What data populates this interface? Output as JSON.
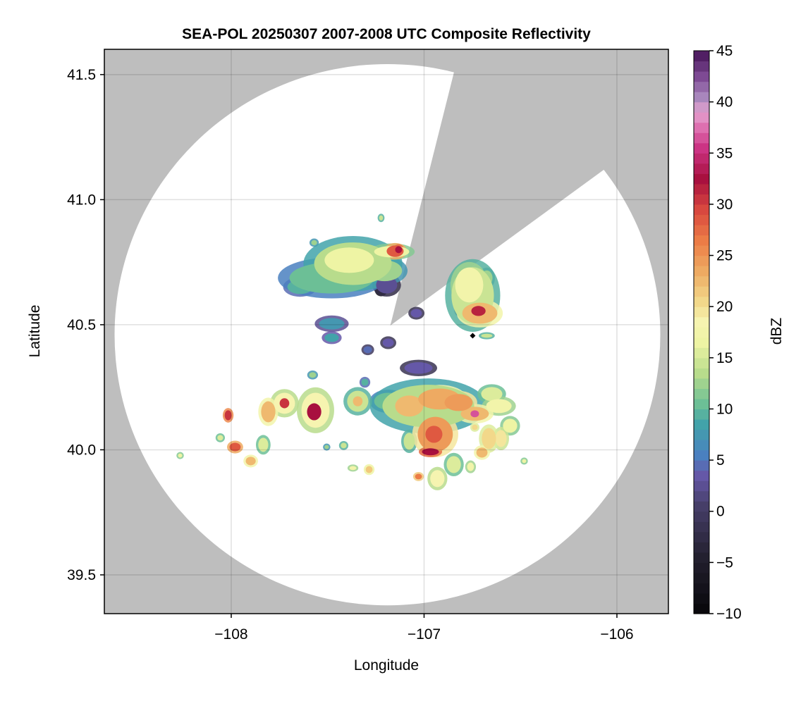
{
  "chart_data": {
    "type": "heatmap",
    "title": "SEA-POL 20250307 2007-2008 UTC Composite Reflectivity",
    "xlabel": "Longitude",
    "ylabel": "Latitude",
    "xlim": [
      -108.658,
      -105.733
    ],
    "ylim": [
      39.345,
      41.601
    ],
    "xticks": [
      -108,
      -107,
      -106
    ],
    "xtick_labels": [
      "−108",
      "−107",
      "−106"
    ],
    "yticks": [
      39.5,
      40.0,
      40.5,
      41.0,
      41.5
    ],
    "ytick_labels": [
      "39.5",
      "40.0",
      "40.5",
      "41.0",
      "41.5"
    ],
    "grid": true,
    "background_color": "#bebebe",
    "grid_color": "#d6d6d6",
    "colorbar": {
      "label": "dBZ",
      "range": [
        -10,
        45
      ],
      "step": 1,
      "ticks": [
        -10,
        -5,
        0,
        5,
        10,
        15,
        20,
        25,
        30,
        35,
        40,
        45
      ],
      "tick_labels": [
        "−10",
        "−5",
        "0",
        "5",
        "10",
        "15",
        "20",
        "25",
        "30",
        "35",
        "40",
        "45"
      ],
      "colormap_stops": [
        [
          -10,
          "#0a090d"
        ],
        [
          -5,
          "#23202f"
        ],
        [
          0,
          "#463e68"
        ],
        [
          3,
          "#6558a8"
        ],
        [
          5,
          "#4a80c0"
        ],
        [
          8,
          "#42a3aa"
        ],
        [
          10,
          "#6cbf96"
        ],
        [
          13,
          "#b8dc8c"
        ],
        [
          16,
          "#eef4a4"
        ],
        [
          18,
          "#f6f4b0"
        ],
        [
          20,
          "#f2d88a"
        ],
        [
          23,
          "#eeaa62"
        ],
        [
          26,
          "#ec7c46"
        ],
        [
          29,
          "#d8483f"
        ],
        [
          32,
          "#a8103f"
        ],
        [
          35,
          "#cc3484"
        ],
        [
          37,
          "#de70b0"
        ],
        [
          38.5,
          "#e4a2d0"
        ],
        [
          40,
          "#a886bc"
        ],
        [
          42,
          "#7e4a94"
        ],
        [
          45,
          "#3a0a4c"
        ]
      ]
    },
    "radar_coverage": {
      "center": [
        -107.19,
        40.46
      ],
      "radius_deg": [
        1.415,
        1.082
      ],
      "blocked_sector": {
        "apex": [
          -107.175,
          40.497
        ],
        "edge_points": [
          [
            -106.839,
            41.527
          ],
          [
            -106.06,
            41.124
          ]
        ]
      }
    },
    "marker": {
      "lon": -106.748,
      "lat": 40.456,
      "shape": "diamond"
    },
    "echo_cells": [
      {
        "lon": -107.479,
        "lat": 40.687,
        "rlon": 0.219,
        "rlat": 0.062,
        "dbz": 10
      },
      {
        "lon": -107.369,
        "lat": 40.744,
        "rlon": 0.201,
        "rlat": 0.085,
        "dbz": 13
      },
      {
        "lon": -107.388,
        "lat": 40.758,
        "rlon": 0.128,
        "rlat": 0.051,
        "dbz": 16
      },
      {
        "lon": -107.643,
        "lat": 40.651,
        "rlon": 0.066,
        "rlat": 0.028,
        "dbz": 9
      },
      {
        "lon": -107.205,
        "lat": 40.716,
        "rlon": 0.091,
        "rlat": 0.042,
        "dbz": 12
      },
      {
        "lon": -107.194,
        "lat": 40.659,
        "rlon": 0.055,
        "rlat": 0.034,
        "dbz": 2
      },
      {
        "lon": -107.223,
        "lat": 40.639,
        "rlon": 0.022,
        "rlat": 0.017,
        "dbz": -3
      },
      {
        "lon": -107.168,
        "lat": 40.792,
        "rlon": 0.091,
        "rlat": 0.023,
        "dbz": 16
      },
      {
        "lon": -107.15,
        "lat": 40.794,
        "rlon": 0.044,
        "rlat": 0.023,
        "dbz": 28
      },
      {
        "lon": -107.132,
        "lat": 40.8,
        "rlon": 0.018,
        "rlat": 0.014,
        "dbz": 32
      },
      {
        "lon": -107.479,
        "lat": 40.504,
        "rlon": 0.066,
        "rlat": 0.023,
        "dbz": 7
      },
      {
        "lon": -107.479,
        "lat": 40.448,
        "rlon": 0.037,
        "rlat": 0.017,
        "dbz": 8
      },
      {
        "lon": -107.186,
        "lat": 40.428,
        "rlon": 0.029,
        "rlat": 0.017,
        "dbz": 3
      },
      {
        "lon": -107.04,
        "lat": 40.546,
        "rlon": 0.029,
        "rlat": 0.017,
        "dbz": 3
      },
      {
        "lon": -107.292,
        "lat": 40.4,
        "rlon": 0.022,
        "rlat": 0.014,
        "dbz": 4
      },
      {
        "lon": -107.57,
        "lat": 40.828,
        "rlon": 0.015,
        "rlat": 0.01,
        "dbz": 12
      },
      {
        "lon": -107.223,
        "lat": 40.927,
        "rlon": 0.01,
        "rlat": 0.01,
        "dbz": 14
      },
      {
        "lon": -106.748,
        "lat": 40.617,
        "rlon": 0.11,
        "rlat": 0.113,
        "dbz": 14
      },
      {
        "lon": -106.766,
        "lat": 40.659,
        "rlon": 0.073,
        "rlat": 0.07,
        "dbz": 17
      },
      {
        "lon": -106.711,
        "lat": 40.546,
        "rlon": 0.091,
        "rlat": 0.042,
        "dbz": 22
      },
      {
        "lon": -106.718,
        "lat": 40.555,
        "rlon": 0.037,
        "rlat": 0.02,
        "dbz": 31
      },
      {
        "lon": -106.784,
        "lat": 40.561,
        "rlon": 0.044,
        "rlat": 0.028,
        "dbz": 7
      },
      {
        "lon": -106.675,
        "lat": 40.456,
        "rlon": 0.029,
        "rlat": 0.008,
        "dbz": 14
      },
      {
        "lon": -106.675,
        "lat": 40.687,
        "rlon": 0.03,
        "rlat": 0.03,
        "dbz": 12
      },
      {
        "lon": -106.978,
        "lat": 40.175,
        "rlon": 0.238,
        "rlat": 0.085,
        "dbz": 13
      },
      {
        "lon": -107.077,
        "lat": 40.175,
        "rlon": 0.073,
        "rlat": 0.042,
        "dbz": 22
      },
      {
        "lon": -106.92,
        "lat": 40.203,
        "rlon": 0.11,
        "rlat": 0.042,
        "dbz": 23
      },
      {
        "lon": -106.942,
        "lat": 40.062,
        "rlon": 0.091,
        "rlat": 0.07,
        "dbz": 24
      },
      {
        "lon": -106.949,
        "lat": 40.062,
        "rlon": 0.044,
        "rlat": 0.034,
        "dbz": 28
      },
      {
        "lon": -106.967,
        "lat": 39.992,
        "rlon": 0.044,
        "rlat": 0.014,
        "dbz": 32
      },
      {
        "lon": -106.737,
        "lat": 40.144,
        "rlon": 0.073,
        "rlat": 0.028,
        "dbz": 22
      },
      {
        "lon": -106.737,
        "lat": 40.144,
        "rlon": 0.022,
        "rlat": 0.014,
        "dbz": 36
      },
      {
        "lon": -106.821,
        "lat": 40.189,
        "rlon": 0.073,
        "rlat": 0.034,
        "dbz": 24
      },
      {
        "lon": -107.066,
        "lat": 40.158,
        "rlon": 0.044,
        "rlat": 0.028,
        "dbz": 11
      },
      {
        "lon": -107.029,
        "lat": 40.327,
        "rlon": 0.073,
        "rlat": 0.023,
        "dbz": 3
      },
      {
        "lon": -106.612,
        "lat": 40.175,
        "rlon": 0.066,
        "rlat": 0.028,
        "dbz": 17
      },
      {
        "lon": -106.649,
        "lat": 40.223,
        "rlon": 0.055,
        "rlat": 0.028,
        "dbz": 15
      },
      {
        "lon": -107.186,
        "lat": 40.194,
        "rlon": 0.073,
        "rlat": 0.034,
        "dbz": 10
      },
      {
        "lon": -107.344,
        "lat": 40.194,
        "rlon": 0.055,
        "rlat": 0.042,
        "dbz": 14
      },
      {
        "lon": -107.344,
        "lat": 40.194,
        "rlon": 0.025,
        "rlat": 0.02,
        "dbz": 22
      },
      {
        "lon": -107.563,
        "lat": 40.158,
        "rlon": 0.073,
        "rlat": 0.07,
        "dbz": 18
      },
      {
        "lon": -107.57,
        "lat": 40.152,
        "rlon": 0.037,
        "rlat": 0.034,
        "dbz": 32
      },
      {
        "lon": -107.724,
        "lat": 40.186,
        "rlon": 0.055,
        "rlat": 0.042,
        "dbz": 18
      },
      {
        "lon": -107.724,
        "lat": 40.186,
        "rlon": 0.025,
        "rlat": 0.02,
        "dbz": 30
      },
      {
        "lon": -107.808,
        "lat": 40.152,
        "rlon": 0.037,
        "rlat": 0.042,
        "dbz": 22
      },
      {
        "lon": -108.016,
        "lat": 40.138,
        "rlon": 0.018,
        "rlat": 0.02,
        "dbz": 30
      },
      {
        "lon": -107.98,
        "lat": 40.011,
        "rlon": 0.029,
        "rlat": 0.017,
        "dbz": 28
      },
      {
        "lon": -107.834,
        "lat": 40.02,
        "rlon": 0.026,
        "rlat": 0.028,
        "dbz": 15
      },
      {
        "lon": -107.899,
        "lat": 39.955,
        "rlon": 0.026,
        "rlat": 0.017,
        "dbz": 22
      },
      {
        "lon": -108.057,
        "lat": 40.048,
        "rlon": 0.015,
        "rlat": 0.011,
        "dbz": 15
      },
      {
        "lon": -108.265,
        "lat": 39.977,
        "rlon": 0.011,
        "rlat": 0.008,
        "dbz": 16
      },
      {
        "lon": -106.931,
        "lat": 39.885,
        "rlon": 0.037,
        "rlat": 0.034,
        "dbz": 18
      },
      {
        "lon": -106.7,
        "lat": 39.989,
        "rlon": 0.029,
        "rlat": 0.02,
        "dbz": 22
      },
      {
        "lon": -106.664,
        "lat": 40.045,
        "rlon": 0.037,
        "rlat": 0.042,
        "dbz": 20
      },
      {
        "lon": -106.601,
        "lat": 40.045,
        "rlon": 0.029,
        "rlat": 0.034,
        "dbz": 19
      },
      {
        "lon": -106.554,
        "lat": 40.096,
        "rlon": 0.037,
        "rlat": 0.028,
        "dbz": 16
      },
      {
        "lon": -107.029,
        "lat": 39.893,
        "rlon": 0.018,
        "rlat": 0.011,
        "dbz": 26
      },
      {
        "lon": -107.285,
        "lat": 39.921,
        "rlon": 0.018,
        "rlat": 0.014,
        "dbz": 21
      },
      {
        "lon": -107.369,
        "lat": 39.927,
        "rlon": 0.018,
        "rlat": 0.008,
        "dbz": 17
      },
      {
        "lon": -106.846,
        "lat": 39.941,
        "rlon": 0.037,
        "rlat": 0.034,
        "dbz": 15
      },
      {
        "lon": -107.077,
        "lat": 40.034,
        "rlon": 0.029,
        "rlat": 0.034,
        "dbz": 14
      },
      {
        "lon": -107.417,
        "lat": 40.017,
        "rlon": 0.015,
        "rlat": 0.011,
        "dbz": 14
      },
      {
        "lon": -107.505,
        "lat": 40.011,
        "rlon": 0.011,
        "rlat": 0.008,
        "dbz": 12
      },
      {
        "lon": -107.578,
        "lat": 40.299,
        "rlon": 0.018,
        "rlat": 0.011,
        "dbz": 12
      },
      {
        "lon": -107.307,
        "lat": 40.27,
        "rlon": 0.018,
        "rlat": 0.014,
        "dbz": 9
      },
      {
        "lon": -106.481,
        "lat": 39.955,
        "rlon": 0.011,
        "rlat": 0.008,
        "dbz": 16
      },
      {
        "lon": -106.759,
        "lat": 39.932,
        "rlon": 0.018,
        "rlat": 0.017,
        "dbz": 17
      },
      {
        "lon": -106.737,
        "lat": 40.09,
        "rlon": 0.015,
        "rlat": 0.011,
        "dbz": 20
      }
    ]
  }
}
